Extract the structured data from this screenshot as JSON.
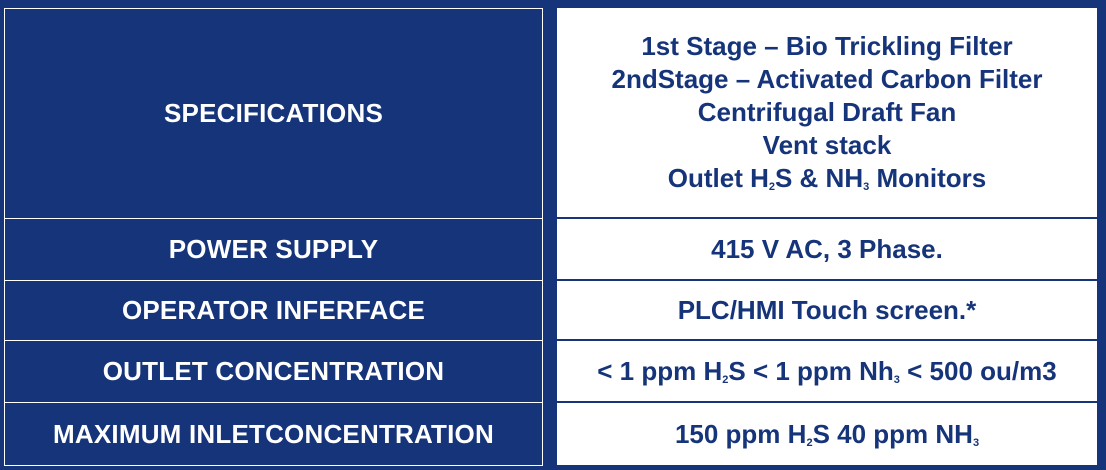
{
  "colors": {
    "navy": "#16347a",
    "white": "#ffffff"
  },
  "rows": [
    {
      "label": "SPECIFICATIONS",
      "value_lines": [
        {
          "parts": [
            {
              "text": "1st Stage – Bio Trickling Filter"
            }
          ]
        },
        {
          "parts": [
            {
              "text": "2ndStage – Activated Carbon Filter"
            }
          ]
        },
        {
          "parts": [
            {
              "text": "Centrifugal Draft Fan"
            }
          ]
        },
        {
          "parts": [
            {
              "text": "Vent stack"
            }
          ]
        },
        {
          "parts": [
            {
              "text": "Outlet H"
            },
            {
              "text": "2",
              "sub": true
            },
            {
              "text": "S & NH"
            },
            {
              "text": "3",
              "sub": true
            },
            {
              "text": " Monitors"
            }
          ]
        }
      ]
    },
    {
      "label": "POWER SUPPLY",
      "value_lines": [
        {
          "parts": [
            {
              "text": "415 V AC, 3 Phase."
            }
          ]
        }
      ]
    },
    {
      "label": "OPERATOR INFERFACE",
      "value_lines": [
        {
          "parts": [
            {
              "text": "PLC/HMI Touch screen.*"
            }
          ]
        }
      ]
    },
    {
      "label": "OUTLET CONCENTRATION",
      "value_lines": [
        {
          "parts": [
            {
              "text": "< 1 ppm H"
            },
            {
              "text": "2",
              "sub": true
            },
            {
              "text": "S < 1 ppm Nh"
            },
            {
              "text": "3",
              "sub": true
            },
            {
              "text": " < 500 ou/m3"
            }
          ]
        }
      ]
    },
    {
      "label": "MAXIMUM INLETCONCENTRATION",
      "value_lines": [
        {
          "parts": [
            {
              "text": "150 ppm H"
            },
            {
              "text": "2",
              "sub": true
            },
            {
              "text": "S 40 ppm NH"
            },
            {
              "text": "3",
              "sub": true
            }
          ]
        }
      ]
    }
  ]
}
